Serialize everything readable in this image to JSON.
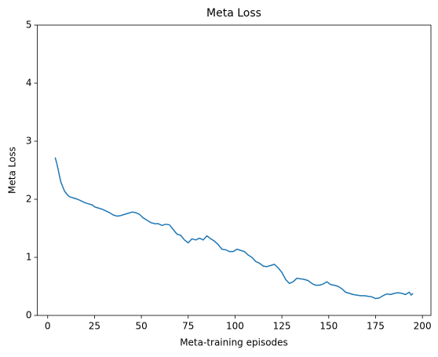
{
  "chart_data": {
    "type": "line",
    "title": "Meta Loss",
    "xlabel": "Meta-training episodes",
    "ylabel": "Meta Loss",
    "x": [
      4,
      5,
      6,
      7,
      8,
      9,
      10,
      11,
      12,
      14,
      16,
      18,
      20,
      22,
      24,
      25,
      27,
      29,
      31,
      33,
      35,
      37,
      39,
      41,
      43,
      45,
      47,
      49,
      51,
      53,
      55,
      57,
      59,
      61,
      63,
      65,
      67,
      69,
      71,
      73,
      75,
      77,
      79,
      81,
      83,
      85,
      87,
      89,
      91,
      93,
      95,
      97,
      99,
      101,
      103,
      105,
      107,
      109,
      111,
      113,
      115,
      117,
      119,
      121,
      123,
      125,
      127,
      129,
      131,
      133,
      135,
      137,
      139,
      141,
      143,
      145,
      147,
      149,
      151,
      153,
      155,
      157,
      159,
      161,
      163,
      165,
      167,
      169,
      171,
      173,
      175,
      177,
      179,
      181,
      183,
      185,
      187,
      189,
      191,
      193,
      194,
      195
    ],
    "values": [
      2.72,
      2.6,
      2.45,
      2.3,
      2.22,
      2.14,
      2.1,
      2.06,
      2.04,
      2.02,
      2.0,
      1.97,
      1.94,
      1.92,
      1.9,
      1.87,
      1.85,
      1.83,
      1.8,
      1.77,
      1.73,
      1.71,
      1.72,
      1.74,
      1.76,
      1.78,
      1.77,
      1.74,
      1.68,
      1.64,
      1.6,
      1.58,
      1.58,
      1.55,
      1.57,
      1.56,
      1.48,
      1.4,
      1.38,
      1.3,
      1.25,
      1.32,
      1.3,
      1.33,
      1.3,
      1.37,
      1.32,
      1.28,
      1.22,
      1.14,
      1.13,
      1.1,
      1.1,
      1.14,
      1.12,
      1.1,
      1.04,
      1.0,
      0.93,
      0.9,
      0.85,
      0.84,
      0.86,
      0.88,
      0.82,
      0.74,
      0.62,
      0.55,
      0.58,
      0.64,
      0.63,
      0.62,
      0.6,
      0.55,
      0.52,
      0.52,
      0.54,
      0.58,
      0.53,
      0.52,
      0.5,
      0.46,
      0.4,
      0.38,
      0.36,
      0.35,
      0.34,
      0.34,
      0.33,
      0.32,
      0.29,
      0.3,
      0.34,
      0.37,
      0.36,
      0.38,
      0.39,
      0.38,
      0.36,
      0.4,
      0.35,
      0.38
    ],
    "color": "#1f77b4",
    "xlim": [
      -5.55,
      204.55
    ],
    "xticks": [
      0,
      25,
      50,
      75,
      100,
      125,
      150,
      175,
      200
    ],
    "ylim": [
      0,
      5
    ],
    "yticks": [
      0,
      1,
      2,
      3,
      4,
      5
    ]
  }
}
